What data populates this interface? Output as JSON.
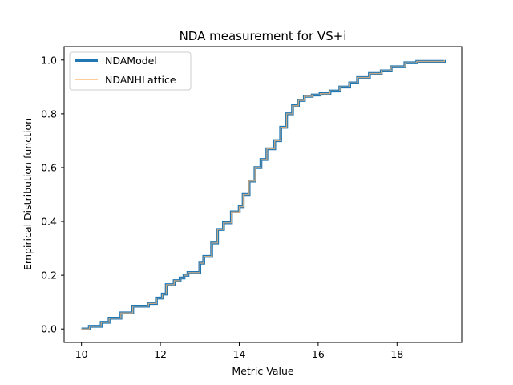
{
  "chart_data": {
    "type": "line",
    "title": "NDA measurement for VS+i",
    "xlabel": "Metric Value",
    "ylabel": "Empirical Distribution function",
    "xlim": [
      9.56,
      19.64
    ],
    "ylim": [
      -0.05,
      1.05
    ],
    "xticks": [
      10,
      12,
      14,
      16,
      18
    ],
    "yticks": [
      0.0,
      0.2,
      0.4,
      0.6,
      0.8,
      1.0
    ],
    "grid": false,
    "legend_position": "top-left",
    "series": [
      {
        "name": "NDAModel",
        "color": "#1f77b4",
        "linewidth": "thick",
        "step": true,
        "x": [
          10.0,
          10.2,
          10.5,
          10.7,
          11.0,
          11.3,
          11.7,
          11.9,
          12.05,
          12.15,
          12.35,
          12.5,
          12.6,
          12.7,
          13.0,
          13.1,
          13.3,
          13.45,
          13.6,
          13.8,
          14.0,
          14.1,
          14.25,
          14.4,
          14.55,
          14.7,
          14.9,
          15.05,
          15.2,
          15.35,
          15.5,
          15.65,
          15.85,
          16.05,
          16.3,
          16.55,
          16.8,
          17.0,
          17.3,
          17.6,
          17.85,
          18.2,
          18.5,
          19.2
        ],
        "y": [
          0.0,
          0.01,
          0.025,
          0.04,
          0.06,
          0.085,
          0.095,
          0.115,
          0.13,
          0.165,
          0.18,
          0.19,
          0.2,
          0.21,
          0.245,
          0.27,
          0.32,
          0.37,
          0.395,
          0.435,
          0.455,
          0.5,
          0.55,
          0.6,
          0.63,
          0.67,
          0.7,
          0.75,
          0.8,
          0.83,
          0.85,
          0.865,
          0.87,
          0.875,
          0.885,
          0.9,
          0.915,
          0.935,
          0.95,
          0.96,
          0.975,
          0.99,
          0.995,
          1.0
        ]
      },
      {
        "name": "NDANHLattice",
        "color": "#ffbb78",
        "linewidth": "thin",
        "step": true,
        "x": [
          10.0,
          10.2,
          10.5,
          10.7,
          11.0,
          11.3,
          11.7,
          11.9,
          12.05,
          12.15,
          12.35,
          12.5,
          12.6,
          12.7,
          13.0,
          13.1,
          13.3,
          13.45,
          13.6,
          13.8,
          14.0,
          14.1,
          14.25,
          14.4,
          14.55,
          14.7,
          14.9,
          15.05,
          15.2,
          15.35,
          15.5,
          15.65,
          15.85,
          16.05,
          16.3,
          16.55,
          16.8,
          17.0,
          17.3,
          17.6,
          17.85,
          18.2,
          18.5,
          19.2
        ],
        "y": [
          0.0,
          0.01,
          0.025,
          0.04,
          0.06,
          0.085,
          0.095,
          0.115,
          0.13,
          0.165,
          0.18,
          0.19,
          0.2,
          0.21,
          0.245,
          0.27,
          0.32,
          0.37,
          0.395,
          0.435,
          0.455,
          0.5,
          0.55,
          0.6,
          0.63,
          0.67,
          0.7,
          0.75,
          0.8,
          0.83,
          0.85,
          0.865,
          0.87,
          0.875,
          0.885,
          0.9,
          0.915,
          0.935,
          0.95,
          0.96,
          0.975,
          0.99,
          0.995,
          1.0
        ]
      }
    ]
  }
}
